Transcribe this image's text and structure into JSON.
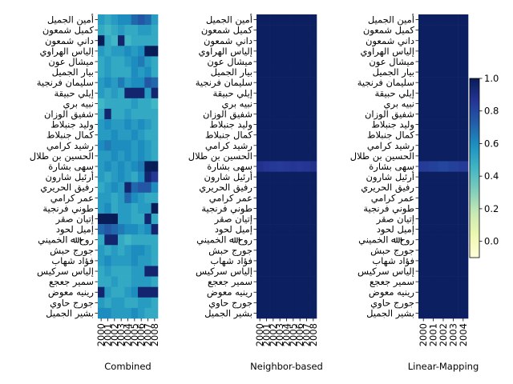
{
  "chart_data": [
    {
      "type": "heatmap",
      "xlabel": "Combined",
      "colormap": "YlGnBu",
      "clim": [
        -0.1,
        1.0
      ],
      "categories": [
        "2000",
        "2001",
        "2002",
        "2003",
        "2004",
        "2005",
        "2006",
        "2007",
        "2008"
      ],
      "rows": [
        "أمين الجميل",
        "كميل شمعون",
        "داني شمعون",
        "إلياس الهراوي",
        "ميشال عون",
        "بيار الجميل",
        "سليمان فرنجية",
        "إيلي حبيقة",
        "نبيه بري",
        "شفيق الوزان",
        "وليد جنبلاط",
        "كمال جنبلاط",
        "رشيد كرامي",
        "الحسين بن طلال",
        "سهى بشارة",
        "أرئيل شارون",
        "رفيق الحريري",
        "عمر كرامي",
        "طوني فرنجية",
        "إتيان صقر",
        "إميل لحود",
        "روح ﷲ الخميني",
        "جورج حبش",
        "فؤاد شهاب",
        "إلياس سركيس",
        "سمير جعجع",
        "رينيه معوض",
        "جورج حاوي",
        "بشير الجميل"
      ],
      "values": [
        [
          0.55,
          0.5,
          0.55,
          0.6,
          0.6,
          0.7,
          0.75,
          0.7,
          0.55
        ],
        [
          0.5,
          0.45,
          0.5,
          0.55,
          0.5,
          0.5,
          0.55,
          0.55,
          0.5
        ],
        [
          1.0,
          0.5,
          0.45,
          0.95,
          0.45,
          0.5,
          0.5,
          0.5,
          0.5
        ],
        [
          0.55,
          0.5,
          0.55,
          0.55,
          0.6,
          0.55,
          0.6,
          1.0,
          1.0
        ],
        [
          0.5,
          0.55,
          0.5,
          0.5,
          0.55,
          0.6,
          0.65,
          0.55,
          0.5
        ],
        [
          0.5,
          0.55,
          0.5,
          0.5,
          0.5,
          0.6,
          0.55,
          0.6,
          0.5
        ],
        [
          0.55,
          0.6,
          0.55,
          0.65,
          0.55,
          0.6,
          0.6,
          0.75,
          0.7
        ],
        [
          0.55,
          0.5,
          0.55,
          0.5,
          0.95,
          0.95,
          0.95,
          0.55,
          0.95
        ],
        [
          0.45,
          0.5,
          0.5,
          0.5,
          0.5,
          0.55,
          0.5,
          0.5,
          0.45
        ],
        [
          0.5,
          0.95,
          0.5,
          0.5,
          0.55,
          0.5,
          0.5,
          0.5,
          0.5
        ],
        [
          0.55,
          0.6,
          0.55,
          0.55,
          0.6,
          0.55,
          0.6,
          0.55,
          0.5
        ],
        [
          0.55,
          0.55,
          0.6,
          0.55,
          0.55,
          0.6,
          0.55,
          0.5,
          0.5
        ],
        [
          0.6,
          0.65,
          0.6,
          0.6,
          0.6,
          0.55,
          0.6,
          0.55,
          0.5
        ],
        [
          0.55,
          0.55,
          0.6,
          0.55,
          0.6,
          0.55,
          0.6,
          0.55,
          0.5
        ],
        [
          0.55,
          0.6,
          0.55,
          0.6,
          0.55,
          0.6,
          0.65,
          1.0,
          1.0
        ],
        [
          0.55,
          0.5,
          0.55,
          0.6,
          0.55,
          0.5,
          0.6,
          0.95,
          0.85
        ],
        [
          0.5,
          0.55,
          0.6,
          0.55,
          0.95,
          0.7,
          0.75,
          0.75,
          0.6
        ],
        [
          0.55,
          0.55,
          0.5,
          0.55,
          0.7,
          0.6,
          0.55,
          0.5,
          0.5
        ],
        [
          0.55,
          0.6,
          0.5,
          0.55,
          0.55,
          0.5,
          0.55,
          0.55,
          1.0
        ],
        [
          1.0,
          1.0,
          1.0,
          0.55,
          0.55,
          0.5,
          0.5,
          0.95,
          0.5
        ],
        [
          0.7,
          0.75,
          0.7,
          0.65,
          0.6,
          0.6,
          0.55,
          0.6,
          0.95
        ],
        [
          0.5,
          0.95,
          0.95,
          0.5,
          0.45,
          0.5,
          0.5,
          0.5,
          0.5
        ],
        [
          0.55,
          0.5,
          0.55,
          0.5,
          0.55,
          0.6,
          0.6,
          0.55,
          0.5
        ],
        [
          0.55,
          0.6,
          0.55,
          0.55,
          0.55,
          0.6,
          0.55,
          0.55,
          0.5
        ],
        [
          0.5,
          0.55,
          0.5,
          0.5,
          0.5,
          0.55,
          0.55,
          0.95,
          0.95
        ],
        [
          0.5,
          0.5,
          0.55,
          0.5,
          0.5,
          0.55,
          0.55,
          0.55,
          0.5
        ],
        [
          0.95,
          0.55,
          0.5,
          0.5,
          0.55,
          0.6,
          0.95,
          0.95,
          0.95
        ],
        [
          0.55,
          0.5,
          0.55,
          0.55,
          0.5,
          0.5,
          0.55,
          0.55,
          0.5
        ],
        [
          0.6,
          0.6,
          0.55,
          0.55,
          0.55,
          0.6,
          0.55,
          0.5,
          0.5
        ]
      ]
    },
    {
      "type": "heatmap",
      "xlabel": "Neighbor-based",
      "colormap": "YlGnBu",
      "clim": [
        -0.1,
        1.0
      ],
      "categories": [
        "2000",
        "2001",
        "2002",
        "2003",
        "2004",
        "2005",
        "2006",
        "2007",
        "2008"
      ],
      "rows": [
        "أمين الجميل",
        "كميل شمعون",
        "داني شمعون",
        "إلياس الهراوي",
        "ميشال عون",
        "بيار الجميل",
        "سليمان فرنجية",
        "إيلي حبيقة",
        "نبيه بري",
        "شفيق الوزان",
        "وليد جنبلاط",
        "كمال جنبلاط",
        "رشيد كرامي",
        "الحسين بن طلال",
        "سهى بشارة",
        "أرئيل شارون",
        "رفيق الحريري",
        "عمر كرامي",
        "طوني فرنجية",
        "إتيان صقر",
        "إميل لحود",
        "روح ﷲ الخميني",
        "جورج حبش",
        "فؤاد شهاب",
        "إلياس سركيس",
        "سمير جعجع",
        "رينيه معوض",
        "جورج حاوي",
        "بشير الجميل"
      ],
      "values": [
        [
          0.98,
          0.98,
          0.98,
          0.98,
          0.98,
          0.98,
          0.98,
          0.98,
          0.98
        ],
        [
          0.98,
          0.98,
          0.98,
          0.98,
          0.98,
          0.98,
          0.98,
          0.98,
          0.98
        ],
        [
          0.98,
          0.98,
          0.98,
          0.98,
          0.98,
          0.98,
          0.98,
          0.98,
          0.98
        ],
        [
          0.98,
          0.98,
          0.98,
          0.98,
          0.98,
          0.98,
          0.98,
          0.98,
          0.98
        ],
        [
          0.98,
          0.98,
          0.98,
          0.98,
          0.98,
          0.98,
          0.98,
          0.98,
          0.98
        ],
        [
          0.98,
          0.98,
          0.98,
          0.98,
          0.98,
          0.98,
          0.98,
          0.98,
          0.98
        ],
        [
          0.98,
          0.98,
          0.98,
          0.98,
          0.98,
          0.98,
          0.98,
          0.98,
          0.98
        ],
        [
          0.98,
          0.98,
          0.98,
          0.98,
          0.98,
          0.98,
          0.98,
          0.98,
          0.98
        ],
        [
          0.98,
          0.98,
          0.98,
          0.98,
          0.98,
          0.98,
          0.98,
          0.98,
          0.98
        ],
        [
          0.98,
          0.98,
          0.98,
          0.98,
          0.98,
          0.98,
          0.98,
          0.98,
          0.98
        ],
        [
          0.98,
          0.98,
          0.98,
          0.98,
          0.98,
          0.98,
          0.98,
          0.98,
          0.98
        ],
        [
          0.98,
          0.98,
          0.98,
          0.98,
          0.98,
          0.98,
          0.98,
          0.98,
          0.98
        ],
        [
          0.98,
          0.98,
          0.98,
          0.98,
          0.98,
          0.98,
          0.98,
          0.98,
          0.98
        ],
        [
          0.98,
          0.98,
          0.98,
          0.98,
          0.98,
          0.98,
          0.98,
          0.98,
          0.98
        ],
        [
          0.88,
          0.86,
          0.85,
          0.84,
          0.85,
          0.86,
          0.85,
          0.86,
          0.88
        ],
        [
          0.98,
          0.98,
          0.98,
          0.98,
          0.98,
          0.98,
          0.98,
          0.98,
          0.98
        ],
        [
          0.98,
          0.98,
          0.98,
          0.98,
          0.98,
          0.98,
          0.98,
          0.98,
          0.98
        ],
        [
          0.98,
          0.98,
          0.98,
          0.98,
          0.98,
          0.98,
          0.98,
          0.98,
          0.98
        ],
        [
          0.98,
          0.98,
          0.98,
          0.98,
          0.98,
          0.98,
          0.98,
          0.98,
          0.98
        ],
        [
          0.98,
          0.98,
          0.98,
          0.98,
          0.98,
          0.98,
          0.98,
          0.98,
          0.98
        ],
        [
          0.98,
          0.98,
          0.98,
          0.98,
          0.98,
          0.98,
          0.98,
          0.98,
          0.98
        ],
        [
          0.98,
          0.98,
          0.98,
          0.98,
          0.98,
          0.98,
          0.98,
          0.98,
          0.98
        ],
        [
          0.98,
          0.98,
          0.98,
          0.98,
          0.98,
          0.98,
          0.98,
          0.98,
          0.98
        ],
        [
          0.98,
          0.98,
          0.98,
          0.98,
          0.98,
          0.98,
          0.98,
          0.98,
          0.98
        ],
        [
          0.98,
          0.98,
          0.98,
          0.98,
          0.98,
          0.98,
          0.98,
          0.98,
          0.98
        ],
        [
          0.98,
          0.98,
          0.98,
          0.98,
          0.98,
          0.98,
          0.98,
          0.98,
          0.98
        ],
        [
          0.98,
          0.98,
          0.98,
          0.98,
          0.98,
          0.98,
          0.98,
          0.98,
          0.98
        ],
        [
          0.98,
          0.98,
          0.98,
          0.98,
          0.98,
          0.98,
          0.98,
          0.98,
          0.98
        ],
        [
          0.98,
          0.98,
          0.98,
          0.98,
          0.98,
          0.98,
          0.98,
          0.98,
          0.98
        ]
      ]
    },
    {
      "type": "heatmap",
      "xlabel": "Linear-Mapping",
      "colormap": "YlGnBu",
      "clim": [
        -0.1,
        1.0
      ],
      "categories": [
        "2000",
        "2001",
        "2002",
        "2003",
        "2004"
      ],
      "rows": [
        "أمين الجميل",
        "كميل شمعون",
        "داني شمعون",
        "إلياس الهراوي",
        "ميشال عون",
        "بيار الجميل",
        "سليمان فرنجية",
        "إيلي حبيقة",
        "نبيه بري",
        "شفيق الوزان",
        "وليد جنبلاط",
        "كمال جنبلاط",
        "رشيد كرامي",
        "الحسين بن طلال",
        "سهى بشارة",
        "أرئيل شارون",
        "رفيق الحريري",
        "عمر كرامي",
        "طوني فرنجية",
        "إتيان صقر",
        "إميل لحود",
        "روح ﷲ الخميني",
        "جورج حبش",
        "فؤاد شهاب",
        "إلياس سركيس",
        "سمير جعجع",
        "رينيه معوض",
        "جورج حاوي",
        "بشير الجميل"
      ],
      "values": [
        [
          0.98,
          0.98,
          0.98,
          0.98,
          0.98
        ],
        [
          0.98,
          0.98,
          0.98,
          0.98,
          0.98
        ],
        [
          0.98,
          0.98,
          0.98,
          0.98,
          0.98
        ],
        [
          0.98,
          0.98,
          0.98,
          0.98,
          0.98
        ],
        [
          0.98,
          0.98,
          0.98,
          0.98,
          0.98
        ],
        [
          0.98,
          0.98,
          0.98,
          0.98,
          0.98
        ],
        [
          0.98,
          0.98,
          0.98,
          0.98,
          0.98
        ],
        [
          0.98,
          0.98,
          0.98,
          0.98,
          0.98
        ],
        [
          0.98,
          0.98,
          0.98,
          0.98,
          0.98
        ],
        [
          0.98,
          0.98,
          0.98,
          0.98,
          0.98
        ],
        [
          0.98,
          0.98,
          0.98,
          0.98,
          0.98
        ],
        [
          0.98,
          0.98,
          0.98,
          0.98,
          0.98
        ],
        [
          0.98,
          0.98,
          0.98,
          0.98,
          0.98
        ],
        [
          0.98,
          0.98,
          0.98,
          0.98,
          0.98
        ],
        [
          0.84,
          0.82,
          0.8,
          0.82,
          0.84
        ],
        [
          0.98,
          0.98,
          0.98,
          0.98,
          0.98
        ],
        [
          0.98,
          0.98,
          0.98,
          0.98,
          0.98
        ],
        [
          0.98,
          0.98,
          0.98,
          0.98,
          0.98
        ],
        [
          0.98,
          0.98,
          0.98,
          0.98,
          0.98
        ],
        [
          0.98,
          0.98,
          0.98,
          0.98,
          0.98
        ],
        [
          0.98,
          0.98,
          0.98,
          0.98,
          0.98
        ],
        [
          0.98,
          0.98,
          0.98,
          0.98,
          0.98
        ],
        [
          0.98,
          0.98,
          0.98,
          0.98,
          0.98
        ],
        [
          0.98,
          0.98,
          0.98,
          0.98,
          0.98
        ],
        [
          0.98,
          0.98,
          0.98,
          0.98,
          0.98
        ],
        [
          0.98,
          0.98,
          0.98,
          0.98,
          0.98
        ],
        [
          0.98,
          0.98,
          0.98,
          0.98,
          0.98
        ],
        [
          0.98,
          0.98,
          0.98,
          0.98,
          0.98
        ],
        [
          0.98,
          0.98,
          0.98,
          0.98,
          0.98
        ]
      ],
      "colorbar": {
        "lim": [
          -0.1,
          1.0
        ],
        "ticks": [
          {
            "value": 0,
            "label": "0.0"
          },
          0.2,
          0.4,
          0.6,
          0.8,
          {
            "value": 1,
            "label": "1.0"
          }
        ]
      }
    }
  ]
}
